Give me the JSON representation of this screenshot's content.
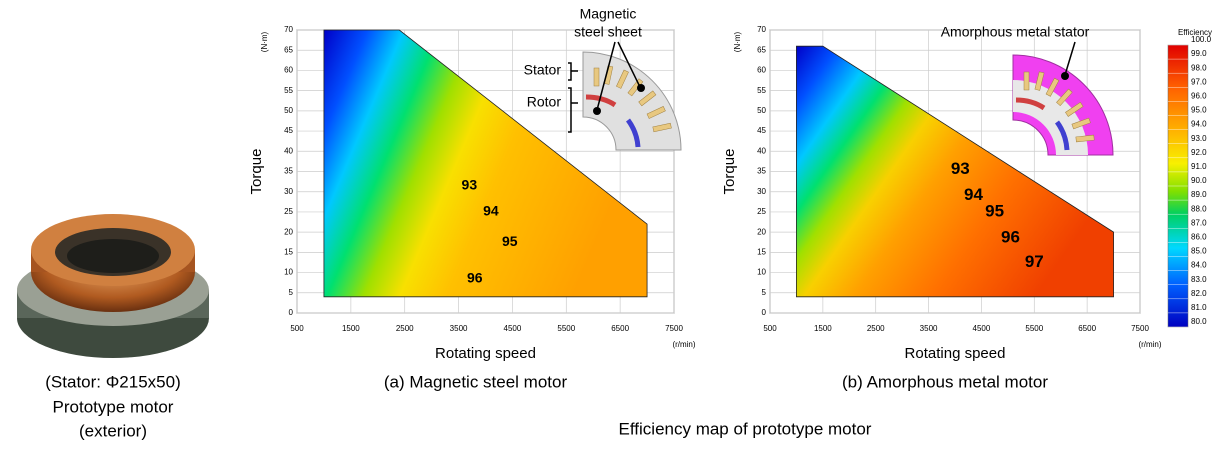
{
  "photo_caption": [
    "(Stator: Φ215x50)",
    "Prototype motor",
    "(exterior)"
  ],
  "figure_caption": "Efficiency map of prototype motor",
  "colorbar": {
    "title": "Efficiency",
    "lim": [
      80,
      100
    ],
    "ticks": [
      {
        "value": 100,
        "label": "100.0"
      },
      {
        "value": 99,
        "label": "99.0"
      },
      {
        "value": 98,
        "label": "98.0"
      },
      {
        "value": 97,
        "label": "97.0"
      },
      {
        "value": 96,
        "label": "96.0"
      },
      {
        "value": 95,
        "label": "95.0"
      },
      {
        "value": 94,
        "label": "94.0"
      },
      {
        "value": 93,
        "label": "93.0"
      },
      {
        "value": 92,
        "label": "92.0"
      },
      {
        "value": 91,
        "label": "91.0"
      },
      {
        "value": 90,
        "label": "90.0"
      },
      {
        "value": 89,
        "label": "89.0"
      },
      {
        "value": 88,
        "label": "88.0"
      },
      {
        "value": 87,
        "label": "87.0"
      },
      {
        "value": 86,
        "label": "86.0"
      },
      {
        "value": 85,
        "label": "85.0"
      },
      {
        "value": 84,
        "label": "84.0"
      },
      {
        "value": 83,
        "label": "83.0"
      },
      {
        "value": 82,
        "label": "82.0"
      },
      {
        "value": 81,
        "label": "81.0"
      },
      {
        "value": 80,
        "label": "80.0"
      }
    ]
  },
  "chart_data": [
    {
      "type": "contour",
      "caption": "(a) Magnetic steel motor",
      "xlabel": "Rotating speed",
      "ylabel": "Torque",
      "x_unit": "(r/min)",
      "y_unit": "(N·m)",
      "xlim": [
        500,
        7500
      ],
      "xticks": [
        500,
        1500,
        2500,
        3500,
        4500,
        5500,
        6500,
        7500
      ],
      "ylim": [
        0,
        70
      ],
      "yticks": [
        0,
        5,
        10,
        15,
        20,
        25,
        30,
        35,
        40,
        45,
        50,
        55,
        60,
        65,
        70
      ],
      "grid": true,
      "envelope": {
        "x": [
          1000,
          1000,
          2400,
          7000,
          7000
        ],
        "y": [
          4,
          70,
          70,
          22,
          4
        ]
      },
      "contour_labels": [
        {
          "value": 93,
          "x": 3700,
          "y": 31.5
        },
        {
          "value": 94,
          "x": 4100,
          "y": 25
        },
        {
          "value": 95,
          "x": 4450,
          "y": 17.5
        },
        {
          "value": 96,
          "x": 3800,
          "y": 8.5
        }
      ],
      "annotations": {
        "sheet": [
          "Magnetic",
          "steel sheet"
        ],
        "stator": "Stator",
        "rotor": "Rotor"
      }
    },
    {
      "type": "contour",
      "caption": "(b) Amorphous metal motor",
      "xlabel": "Rotating speed",
      "ylabel": "Torque",
      "x_unit": "(r/min)",
      "y_unit": "(N·m)",
      "xlim": [
        500,
        7500
      ],
      "xticks": [
        500,
        1500,
        2500,
        3500,
        4500,
        5500,
        6500,
        7500
      ],
      "ylim": [
        0,
        70
      ],
      "yticks": [
        0,
        5,
        10,
        15,
        20,
        25,
        30,
        35,
        40,
        45,
        50,
        55,
        60,
        65,
        70
      ],
      "grid": true,
      "envelope": {
        "x": [
          1000,
          1000,
          1500,
          7000,
          7000
        ],
        "y": [
          4,
          66,
          66,
          20,
          4
        ]
      },
      "contour_labels": [
        {
          "value": 93,
          "x": 4100,
          "y": 35.5
        },
        {
          "value": 94,
          "x": 4350,
          "y": 29
        },
        {
          "value": 95,
          "x": 4750,
          "y": 25
        },
        {
          "value": 96,
          "x": 5050,
          "y": 18.5
        },
        {
          "value": 97,
          "x": 5500,
          "y": 12.5
        }
      ],
      "annotations": {
        "stator": "Amorphous metal stator"
      }
    }
  ]
}
